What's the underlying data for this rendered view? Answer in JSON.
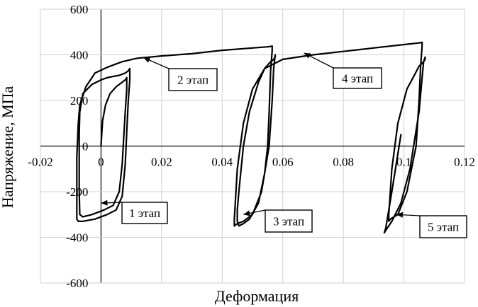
{
  "chart_data": {
    "type": "line",
    "xlabel": "Деформация",
    "ylabel": "Напряжение, МПа",
    "xlim": [
      -0.02,
      0.12
    ],
    "ylim": [
      -600,
      600
    ],
    "xticks": [
      "-0.02",
      "0",
      "0.02",
      "0.04",
      "0.06",
      "0.08",
      "0.1",
      "0.12"
    ],
    "yticks": [
      "600",
      "400",
      "200",
      "0",
      "-200",
      "-400",
      "-600"
    ],
    "grid": true,
    "series": [
      {
        "name": "",
        "x": [
          0.0,
          0.0005,
          0.0015,
          0.003,
          0.005,
          0.007,
          0.008,
          0.0085,
          0.0085,
          0.008,
          0.0075,
          0.007,
          0.006,
          0.004,
          0.001,
          -0.003,
          -0.006,
          -0.007,
          -0.0072,
          -0.0072,
          -0.007,
          -0.006,
          -0.003,
          0.0,
          0.002,
          0.004,
          0.006,
          0.008,
          0.009,
          0.0095,
          0.0095,
          0.009,
          0.0085,
          0.008,
          0.007,
          0.005,
          0.002,
          -0.002,
          -0.006,
          -0.0075,
          -0.008,
          -0.008,
          -0.0075,
          -0.007,
          -0.005,
          -0.002,
          0.002,
          0.007,
          0.012,
          0.02,
          0.03,
          0.04,
          0.05,
          0.055,
          0.056,
          0.0565,
          0.0565,
          0.056,
          0.0555,
          0.055,
          0.054,
          0.052,
          0.049,
          0.047,
          0.0455,
          0.045,
          0.045,
          0.0455,
          0.047,
          0.049,
          0.052,
          0.054,
          0.056,
          0.057,
          0.0575,
          0.0575,
          0.057,
          0.0565,
          0.0555,
          0.053,
          0.05,
          0.047,
          0.045,
          0.044,
          0.044,
          0.045,
          0.047,
          0.05,
          0.054,
          0.06,
          0.07,
          0.08,
          0.09,
          0.1,
          0.105,
          0.106,
          0.106,
          0.1055,
          0.105,
          0.104,
          0.101,
          0.098,
          0.0955,
          0.095,
          0.095,
          0.096,
          0.098,
          0.101,
          0.103,
          0.105,
          0.1065,
          0.107,
          0.107,
          0.1065,
          0.106,
          0.105,
          0.102,
          0.099,
          0.096,
          0.094,
          0.0935,
          0.094,
          0.096,
          0.099
        ],
        "y": [
          0,
          110,
          180,
          230,
          260,
          280,
          290,
          300,
          250,
          150,
          40,
          -80,
          -200,
          -260,
          -280,
          -300,
          -310,
          -300,
          -200,
          50,
          150,
          230,
          270,
          290,
          300,
          305,
          310,
          320,
          330,
          340,
          290,
          200,
          60,
          -80,
          -220,
          -280,
          -300,
          -320,
          -330,
          -330,
          -320,
          -50,
          100,
          180,
          260,
          320,
          345,
          370,
          385,
          395,
          405,
          420,
          430,
          435,
          437,
          438,
          420,
          330,
          150,
          0,
          -120,
          -250,
          -320,
          -340,
          -350,
          -330,
          -280,
          -200,
          0,
          150,
          280,
          340,
          370,
          380,
          390,
          400,
          340,
          200,
          0,
          -200,
          -300,
          -330,
          -340,
          -350,
          -320,
          -100,
          100,
          250,
          340,
          380,
          400,
          415,
          430,
          445,
          452,
          455,
          440,
          350,
          200,
          0,
          -200,
          -300,
          -320,
          -330,
          -300,
          -100,
          100,
          250,
          300,
          350,
          370,
          380,
          390,
          370,
          300,
          150,
          -100,
          -250,
          -330,
          -370,
          -380,
          -360,
          -200,
          50
        ]
      }
    ],
    "annotations": [
      {
        "text": "1 этап",
        "x": 0.0,
        "y": -250
      },
      {
        "text": "2 этап",
        "x": 0.014,
        "y": 388
      },
      {
        "text": "3 этап",
        "x": 0.047,
        "y": -300
      },
      {
        "text": "4 этап",
        "x": 0.067,
        "y": 408
      },
      {
        "text": "5 этап",
        "x": 0.0975,
        "y": -300
      }
    ]
  }
}
